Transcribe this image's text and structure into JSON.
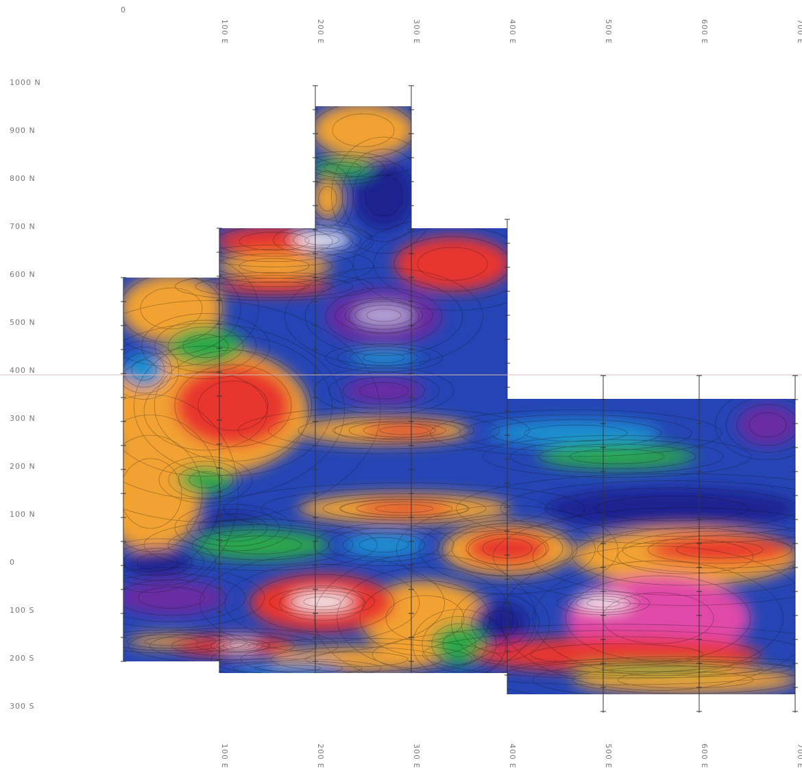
{
  "map": {
    "origin_label": "0",
    "northing_labels": [
      "1000 N",
      "900 N",
      "800 N",
      "700 N",
      "600 N",
      "500 N",
      "400 N",
      "300 N",
      "200 N",
      "100 N",
      "0",
      "100 S",
      "200 S",
      "300 S"
    ],
    "easting_labels": [
      "100 E",
      "200 E",
      "300 E",
      "400 E",
      "500 E",
      "600 E",
      "700 E"
    ]
  }
}
